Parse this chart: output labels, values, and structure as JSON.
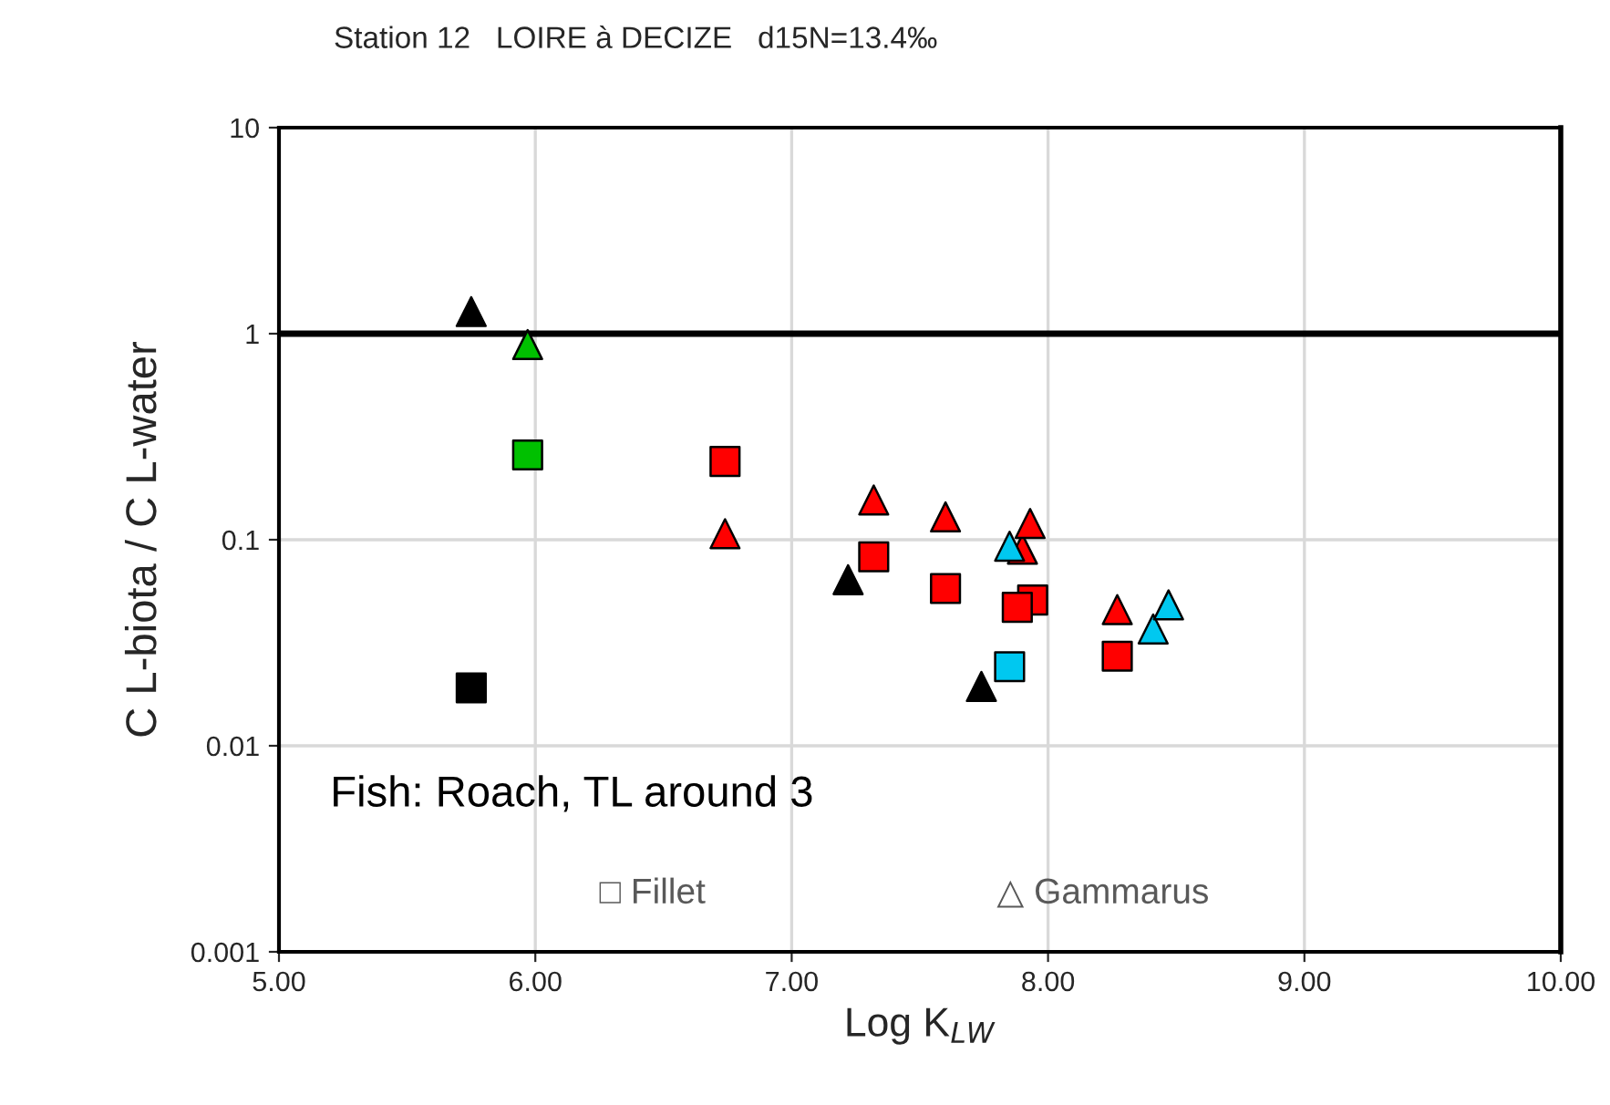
{
  "chart_data": {
    "type": "scatter",
    "title": "Station 12   LOIRE à DECIZE   d15N=13.4‰",
    "xlabel": "Log K$_{LW}$",
    "ylabel": "C L-biota / C L-water",
    "annotations": [
      "Fish: Roach, TL around 3",
      "□ Fillet",
      "△ Gammarus"
    ],
    "log": "y",
    "xlim": [
      5,
      10
    ],
    "ylim": [
      0.001,
      10
    ],
    "xticks": [
      {
        "value": 5,
        "label": "5.00"
      },
      {
        "value": 6,
        "label": "6.00"
      },
      {
        "value": 7,
        "label": "7.00"
      },
      {
        "value": 8,
        "label": "8.00"
      },
      {
        "value": 9,
        "label": "9.00"
      },
      {
        "value": 10,
        "label": "10.00"
      }
    ],
    "yticks": [
      0.001,
      0.01,
      0.1,
      1,
      10
    ],
    "grid": true,
    "legend": false,
    "ref_lines": [
      {
        "axis": "y",
        "value": 1,
        "color": "#000000"
      }
    ],
    "series": [
      {
        "color": "#000000",
        "marker": "triangle",
        "x": [
          5.75,
          7.22,
          7.74
        ],
        "values": [
          1.28,
          0.064,
          0.0194
        ]
      },
      {
        "color": "#000000",
        "marker": "square",
        "x": [
          5.75
        ],
        "values": [
          0.0191
        ]
      },
      {
        "color": "#00c000",
        "marker": "triangle",
        "x": [
          5.97
        ],
        "values": [
          0.885
        ]
      },
      {
        "color": "#00c000",
        "marker": "square",
        "x": [
          5.97
        ],
        "values": [
          0.258
        ]
      },
      {
        "color": "#ff0000",
        "marker": "triangle",
        "x": [
          6.74,
          7.32,
          7.6,
          7.9,
          7.93,
          8.27
        ],
        "values": [
          0.107,
          0.156,
          0.129,
          0.09,
          0.12,
          0.0458
        ]
      },
      {
        "color": "#ff0000",
        "marker": "square",
        "x": [
          6.74,
          7.32,
          7.6,
          7.94,
          7.88,
          8.27
        ],
        "values": [
          0.24,
          0.0826,
          0.058,
          0.051,
          0.047,
          0.0272
        ]
      },
      {
        "color": "#00c8f0",
        "marker": "triangle",
        "x": [
          7.85,
          8.41,
          8.47
        ],
        "values": [
          0.093,
          0.0369,
          0.0483
        ]
      },
      {
        "color": "#00c8f0",
        "marker": "square",
        "x": [
          7.85
        ],
        "values": [
          0.0242
        ]
      }
    ]
  }
}
